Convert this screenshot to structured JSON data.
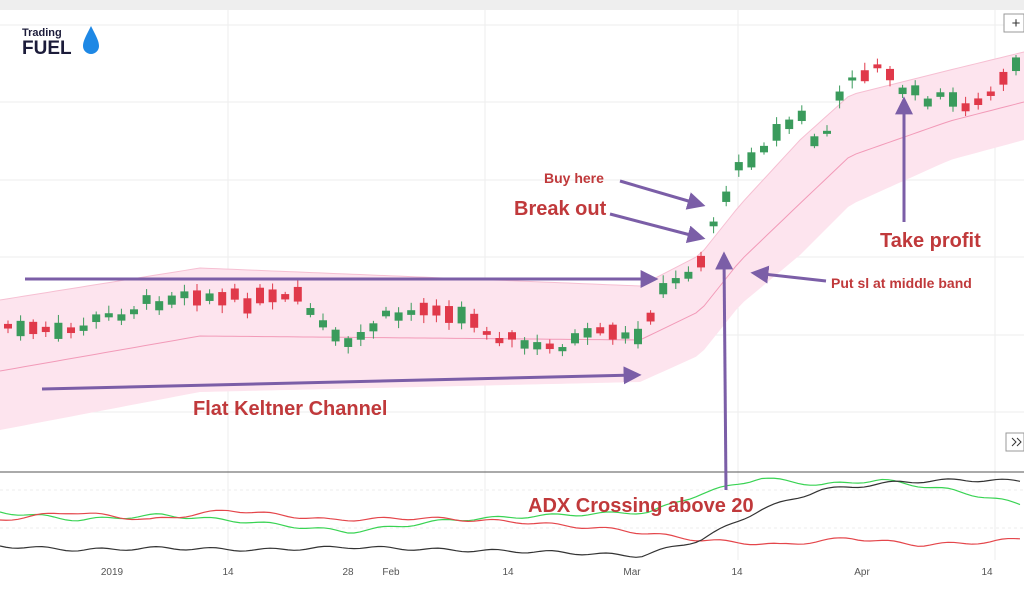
{
  "logo": {
    "line1": "Trading",
    "line2": "FUEL"
  },
  "annotations": {
    "buy_here": "Buy here",
    "break_out": "Break out",
    "take_profit": "Take profit",
    "stop_loss": "Put sl at middle band",
    "flat_channel": "Flat Keltner Channel",
    "adx": "ADX Crossing above 20"
  },
  "x_axis": [
    "2019",
    "14",
    "28",
    "Feb",
    "14",
    "Mar",
    "14",
    "Apr",
    "14"
  ],
  "buttons": {
    "zoom": "+"
  }
}
